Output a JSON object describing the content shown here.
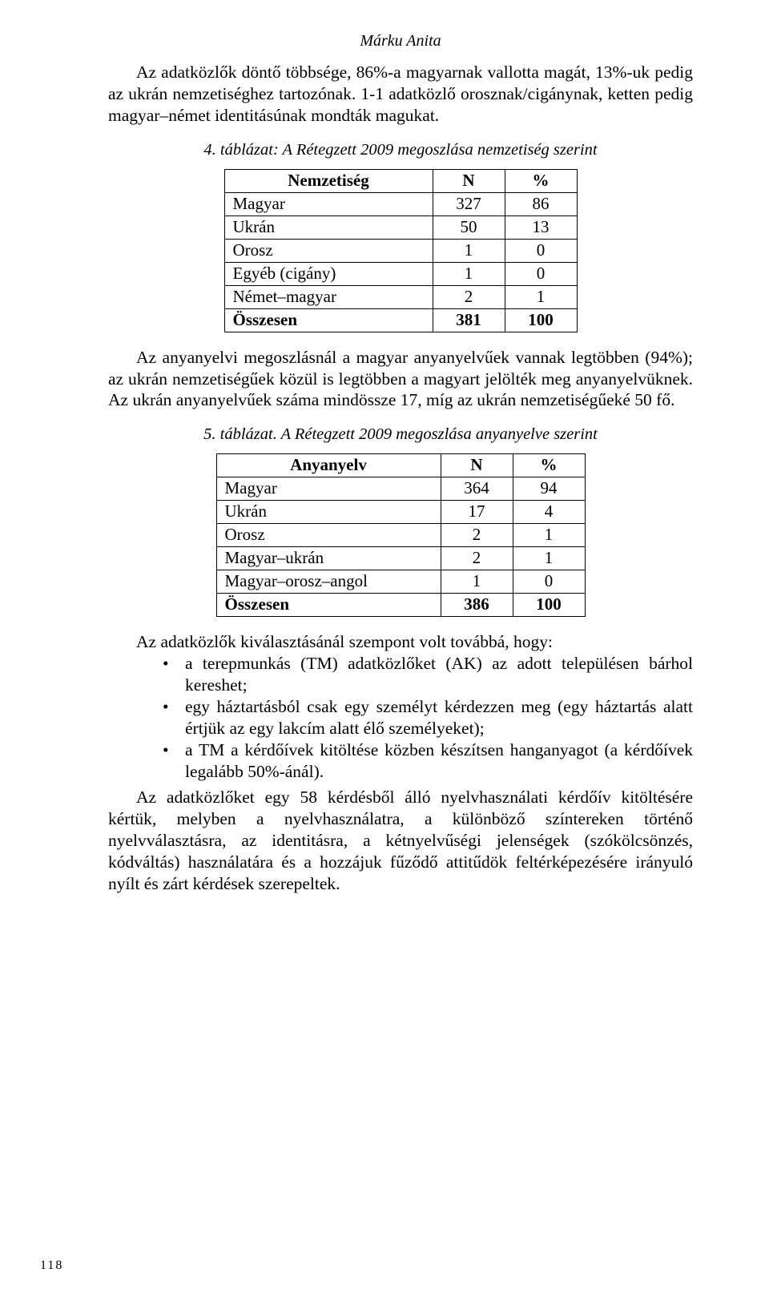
{
  "running_head": "Márku Anita",
  "para1": "Az adatközlők döntő többsége, 86%-a magyarnak vallotta magát, 13%-uk pedig az ukrán nemzetiséghez tartozónak. 1-1 adatközlő orosznak/cigánynak, ketten pedig magyar–német identitásúnak mondták magukat.",
  "table4": {
    "caption": "4. táblázat: A Rétegzett 2009 megoszlása nemzetiség szerint",
    "col_label": "Nemzetiség",
    "col_n": "N",
    "col_pct": "%",
    "rows": [
      {
        "label": "Magyar",
        "n": "327",
        "pct": "86"
      },
      {
        "label": "Ukrán",
        "n": "50",
        "pct": "13"
      },
      {
        "label": "Orosz",
        "n": "1",
        "pct": "0"
      },
      {
        "label": "Egyéb (cigány)",
        "n": "1",
        "pct": "0"
      },
      {
        "label": "Német–magyar",
        "n": "2",
        "pct": "1"
      }
    ],
    "total": {
      "label": "Összesen",
      "n": "381",
      "pct": "100"
    },
    "col_widths": {
      "label": 260,
      "n": 90,
      "pct": 90
    }
  },
  "para2": "Az anyanyelvi megoszlásnál a magyar anyanyelvűek vannak legtöbben (94%); az ukrán nemzetiségűek közül is legtöbben a magyart jelölték meg anyanyelvüknek. Az ukrán anyanyelvűek száma mindössze 17, míg az ukrán nemzetiségűeké 50 fő.",
  "table5": {
    "caption": "5. táblázat. A Rétegzett 2009 megoszlása anyanyelve szerint",
    "col_label": "Anyanyelv",
    "col_n": "N",
    "col_pct": "%",
    "rows": [
      {
        "label": "Magyar",
        "n": "364",
        "pct": "94"
      },
      {
        "label": "Ukrán",
        "n": "17",
        "pct": "4"
      },
      {
        "label": "Orosz",
        "n": "2",
        "pct": "1"
      },
      {
        "label": "Magyar–ukrán",
        "n": "2",
        "pct": "1"
      },
      {
        "label": "Magyar–orosz–angol",
        "n": "1",
        "pct": "0"
      }
    ],
    "total": {
      "label": "Összesen",
      "n": "386",
      "pct": "100"
    },
    "col_widths": {
      "label": 280,
      "n": 90,
      "pct": 90
    }
  },
  "para3_lead": "Az adatközlők kiválasztásánál szempont volt továbbá, hogy:",
  "bullets": [
    "a terepmunkás (TM) adatközlőket (AK) az adott településen bárhol kereshet;",
    "egy háztartásból csak egy személyt kérdezzen meg (egy háztartás alatt értjük az egy lakcím alatt élő személyeket);",
    "a TM a kérdőívek kitöltése közben készítsen hanganyagot (a kérdőívek legalább 50%-ánál)."
  ],
  "para4": "Az adatközlőket egy 58 kérdésből álló nyelvhasználati kérdőív kitöltésére kértük, melyben a nyelvhasználatra, a különböző színtereken történő nyelvválasztásra, az identitásra, a kétnyelvűségi jelenségek (szókölcsönzés, kódváltás) használatára és a hozzájuk fűződő attitűdök feltérképezésére irányuló nyílt és zárt kérdések szerepeltek.",
  "page_number": "118"
}
